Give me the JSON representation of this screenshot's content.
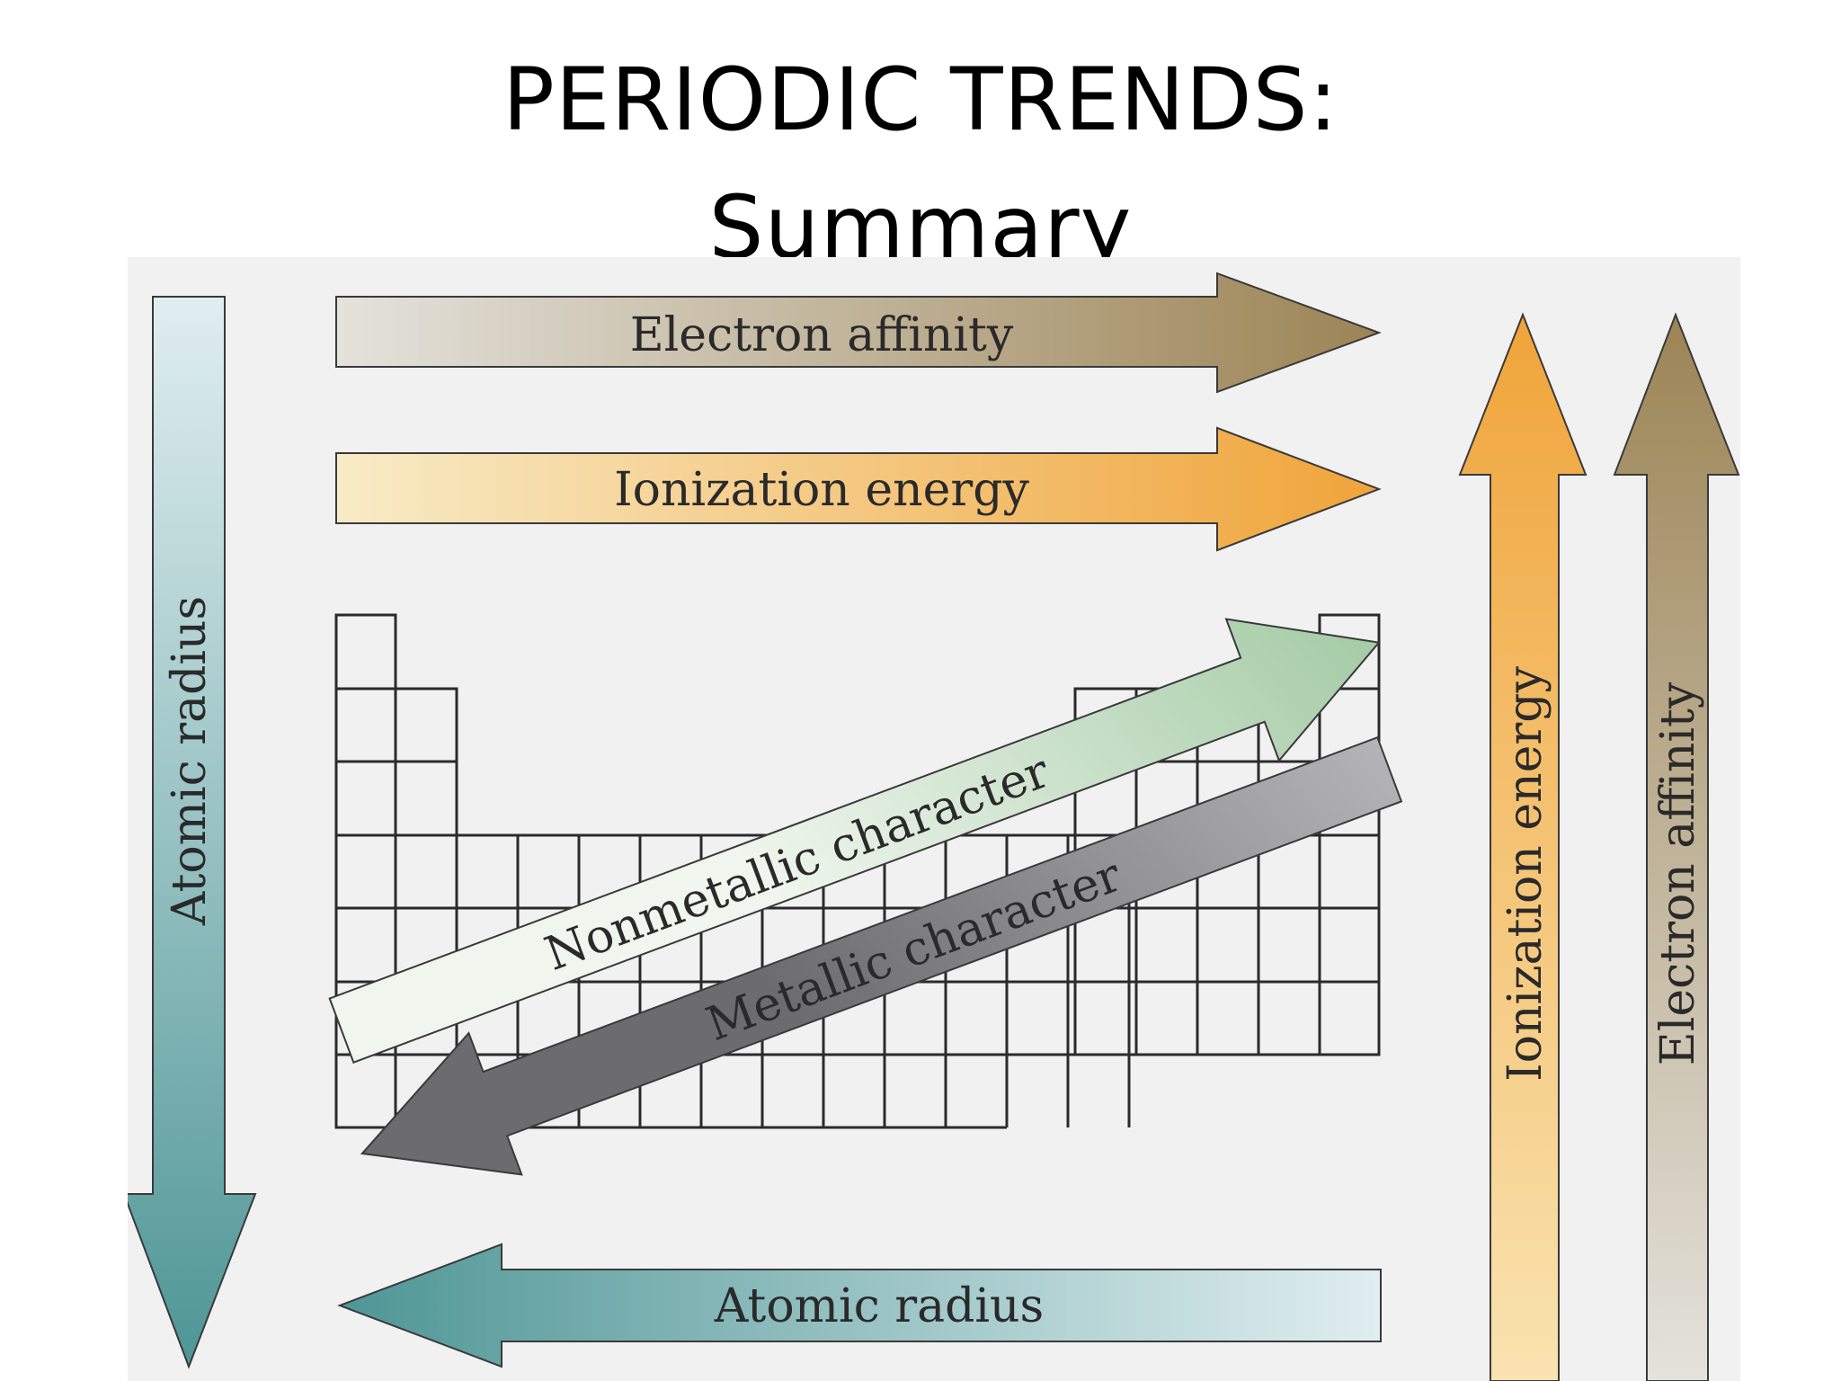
{
  "title": {
    "line1": "PERIODIC TRENDS:",
    "line2": "Summary"
  },
  "arrows": {
    "electron_affinity_top": "Electron affinity",
    "ionization_energy_top": "Ionization energy",
    "atomic_radius_left": "Atomic radius",
    "atomic_radius_bottom": "Atomic radius",
    "ionization_energy_right": "Ionization energy",
    "electron_affinity_right": "Electron affinity",
    "nonmetallic_character": "Nonmetallic character",
    "metallic_character": "Metallic character"
  },
  "colors": {
    "electron_affinity": "#9c8455",
    "ionization_energy": "#f0a43a",
    "atomic_radius": "#4f9696",
    "nonmetallic_character": "#6aaa6e",
    "metallic_character": "#7a7a7c",
    "background": "#f1f1f2"
  }
}
